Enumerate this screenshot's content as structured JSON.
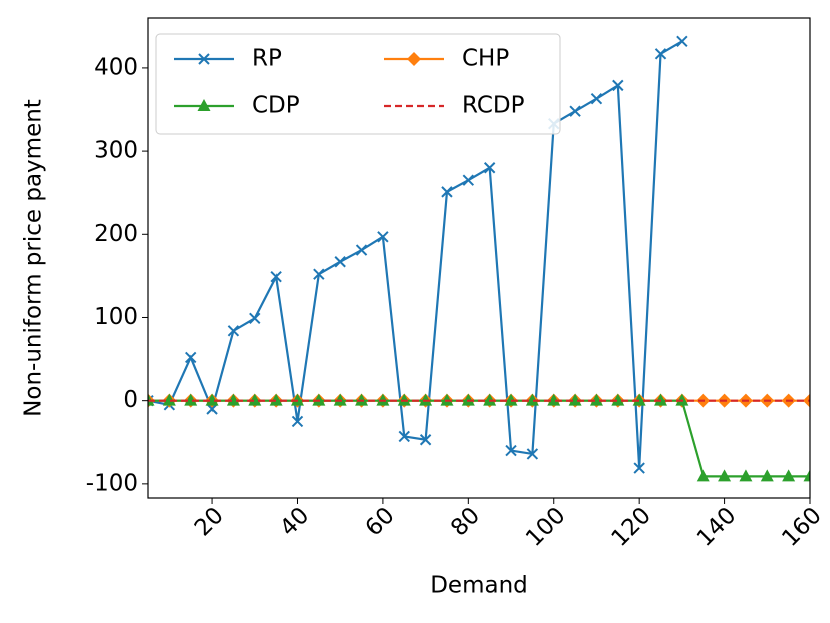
{
  "chart_data": {
    "type": "line",
    "x_label": "Demand",
    "y_label": "Non-uniform price payment",
    "x": [
      5,
      10,
      15,
      20,
      25,
      30,
      35,
      40,
      45,
      50,
      55,
      60,
      65,
      70,
      75,
      80,
      85,
      90,
      95,
      100,
      105,
      110,
      115,
      120,
      125,
      130,
      135,
      140,
      145,
      150,
      155,
      160
    ],
    "xlim": [
      5,
      160
    ],
    "xticks": [
      20,
      40,
      60,
      80,
      100,
      120,
      140,
      160
    ],
    "ylim": [
      -117,
      460
    ],
    "yticks": [
      -100,
      0,
      100,
      200,
      300,
      400
    ],
    "legend": "upper left",
    "legend_columns": 2,
    "series": [
      {
        "name": "RP",
        "color": "#1f77b4",
        "marker": "x",
        "dash": false,
        "values": [
          0,
          -5,
          52,
          -10,
          84,
          99,
          149,
          -25,
          152,
          167,
          181,
          197,
          -43,
          -47,
          251,
          265,
          280,
          -60,
          -64,
          333,
          348,
          363,
          379,
          -81,
          417,
          432,
          null,
          null,
          null,
          null,
          null,
          null
        ]
      },
      {
        "name": "CHP",
        "color": "#ff7f0e",
        "marker": "diamond",
        "dash": false,
        "values": [
          0,
          0,
          0,
          0,
          0,
          0,
          0,
          0,
          0,
          0,
          0,
          0,
          0,
          0,
          0,
          0,
          0,
          0,
          0,
          0,
          0,
          0,
          0,
          0,
          0,
          0,
          0,
          0,
          0,
          0,
          0,
          0
        ]
      },
      {
        "name": "CDP",
        "color": "#2ca02c",
        "marker": "triangle",
        "dash": false,
        "values": [
          0,
          0,
          0,
          0,
          0,
          0,
          0,
          0,
          0,
          0,
          0,
          0,
          0,
          0,
          0,
          0,
          0,
          0,
          0,
          0,
          0,
          0,
          0,
          0,
          0,
          0,
          -91,
          -91,
          -91,
          -91,
          -91,
          -91
        ]
      },
      {
        "name": "RCDP",
        "color": "#d62728",
        "marker": "none",
        "dash": true,
        "values": [
          0,
          0,
          0,
          0,
          0,
          0,
          0,
          0,
          0,
          0,
          0,
          0,
          0,
          0,
          0,
          0,
          0,
          0,
          0,
          0,
          0,
          0,
          0,
          0,
          0,
          0,
          0,
          0,
          0,
          0,
          0,
          0
        ]
      }
    ]
  }
}
